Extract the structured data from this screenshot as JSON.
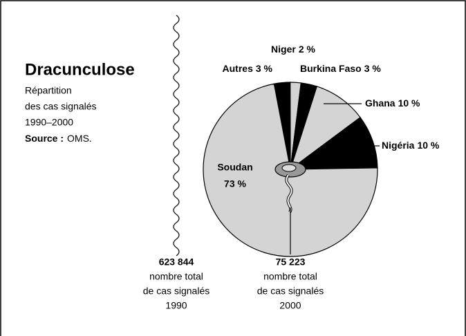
{
  "chart_data": {
    "type": "pie",
    "title": "Dracunculose",
    "subtitle": [
      "Répartition",
      "des cas signalés",
      "1990–2000"
    ],
    "source_label": "Source :",
    "source": "OMS.",
    "categories": [
      "Autres",
      "Niger",
      "Burkina Faso",
      "Ghana",
      "Nigéria",
      "Soudan"
    ],
    "values": [
      3,
      2,
      3,
      10,
      10,
      73
    ],
    "value_labels": [
      "3 %",
      "2 %",
      "3 %",
      "10 %",
      "10 %",
      "73 %"
    ],
    "colors": [
      "#000000",
      "#d4d4d4",
      "#000000",
      "#d4d4d4",
      "#000000",
      "#d4d4d4"
    ],
    "annotations": [
      {
        "number": "623 844",
        "lines": [
          "nombre total",
          "de cas signalés",
          "1990"
        ]
      },
      {
        "number": "75 223",
        "lines": [
          "nombre total",
          "de cas signalés",
          "2000"
        ]
      }
    ]
  }
}
